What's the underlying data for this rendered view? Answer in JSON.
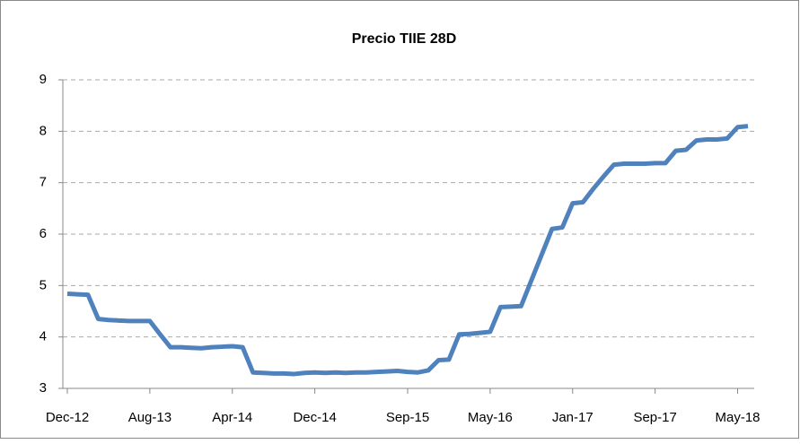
{
  "chart_data": {
    "type": "line",
    "title": "Precio TIIE 28D",
    "categories": [
      "Dec-12",
      null,
      null,
      null,
      null,
      null,
      null,
      null,
      "Aug-13",
      null,
      null,
      null,
      null,
      null,
      null,
      null,
      "Apr-14",
      null,
      null,
      null,
      null,
      null,
      null,
      null,
      "Dec-14",
      null,
      null,
      null,
      null,
      null,
      null,
      null,
      null,
      "Sep-15",
      null,
      null,
      null,
      null,
      null,
      null,
      null,
      "May-16",
      null,
      null,
      null,
      null,
      null,
      null,
      null,
      "Jan-17",
      null,
      null,
      null,
      null,
      null,
      null,
      null,
      "Sep-17",
      null,
      null,
      null,
      null,
      null,
      null,
      null,
      "May-18",
      null
    ],
    "series": [
      {
        "name": "TIIE 28D",
        "color": "#4f81bd",
        "values": [
          4.84,
          4.83,
          4.82,
          4.35,
          4.33,
          4.32,
          4.31,
          4.31,
          4.31,
          4.05,
          3.8,
          3.8,
          3.79,
          3.78,
          3.8,
          3.81,
          3.82,
          3.8,
          3.31,
          3.3,
          3.29,
          3.29,
          3.28,
          3.3,
          3.31,
          3.3,
          3.31,
          3.3,
          3.31,
          3.31,
          3.32,
          3.33,
          3.34,
          3.32,
          3.31,
          3.35,
          3.55,
          3.56,
          4.05,
          4.06,
          4.08,
          4.1,
          4.58,
          4.59,
          4.6,
          5.1,
          5.6,
          6.1,
          6.13,
          6.6,
          6.62,
          6.88,
          7.12,
          7.35,
          7.37,
          7.37,
          7.37,
          7.38,
          7.38,
          7.62,
          7.64,
          7.82,
          7.84,
          7.84,
          7.86,
          8.08,
          8.1
        ]
      }
    ],
    "ylim": [
      3,
      9
    ],
    "yticks": [
      3,
      4,
      5,
      6,
      7,
      8,
      9
    ],
    "grid": true
  }
}
